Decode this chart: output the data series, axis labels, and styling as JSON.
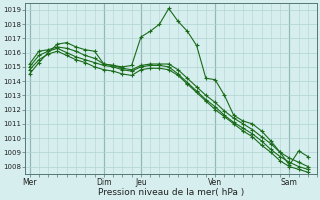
{
  "xlabel": "Pression niveau de la mer( hPa )",
  "bg_color": "#d6eeee",
  "grid_color": "#b0d4d4",
  "line_color": "#1a6b1a",
  "marker_color": "#1a6b1a",
  "ylim": [
    1007.5,
    1019.5
  ],
  "yticks": [
    1008,
    1009,
    1010,
    1011,
    1012,
    1013,
    1014,
    1015,
    1016,
    1017,
    1018,
    1019
  ],
  "day_labels": [
    "Mer",
    "Dim",
    "Jeu",
    "Ven",
    "Sam"
  ],
  "day_positions": [
    0,
    48,
    72,
    120,
    168
  ],
  "xlim": [
    -3,
    186
  ],
  "series": [
    [
      0,
      1014.5,
      6,
      1015.3,
      12,
      1016.0,
      18,
      1016.6,
      24,
      1016.7,
      30,
      1016.4,
      36,
      1016.2,
      42,
      1016.1,
      48,
      1015.2,
      54,
      1015.1,
      60,
      1015.0,
      66,
      1015.1,
      72,
      1017.1,
      78,
      1017.5,
      84,
      1018.0,
      90,
      1019.1,
      96,
      1018.2,
      102,
      1017.5,
      108,
      1016.5,
      114,
      1014.2,
      120,
      1014.1,
      126,
      1013.0,
      132,
      1011.6,
      138,
      1011.2,
      144,
      1011.0,
      150,
      1010.5,
      156,
      1009.8,
      162,
      1009.0,
      168,
      1008.1,
      174,
      1009.1,
      180,
      1008.7
    ],
    [
      0,
      1015.2,
      6,
      1016.1,
      12,
      1016.2,
      18,
      1016.4,
      24,
      1016.3,
      30,
      1016.1,
      36,
      1015.8,
      42,
      1015.6,
      48,
      1015.2,
      54,
      1015.1,
      60,
      1014.9,
      66,
      1014.8,
      72,
      1015.1,
      78,
      1015.2,
      84,
      1015.2,
      90,
      1015.2,
      96,
      1014.8,
      102,
      1014.2,
      108,
      1013.6,
      114,
      1013.0,
      120,
      1012.5,
      126,
      1011.9,
      132,
      1011.4,
      138,
      1011.0,
      144,
      1010.6,
      150,
      1010.1,
      156,
      1009.6,
      162,
      1009.0,
      168,
      1008.6,
      174,
      1008.3,
      180,
      1008.0
    ],
    [
      0,
      1015.0,
      6,
      1015.8,
      12,
      1016.1,
      18,
      1016.3,
      24,
      1016.0,
      30,
      1015.7,
      36,
      1015.5,
      42,
      1015.3,
      48,
      1015.1,
      54,
      1015.0,
      60,
      1014.8,
      66,
      1014.7,
      72,
      1015.0,
      78,
      1015.1,
      84,
      1015.1,
      90,
      1015.0,
      96,
      1014.5,
      102,
      1013.9,
      108,
      1013.3,
      114,
      1012.7,
      120,
      1012.2,
      126,
      1011.6,
      132,
      1011.1,
      138,
      1010.7,
      144,
      1010.3,
      150,
      1009.8,
      156,
      1009.2,
      162,
      1008.7,
      168,
      1008.3,
      174,
      1008.0,
      180,
      1007.8
    ],
    [
      0,
      1014.8,
      6,
      1015.5,
      12,
      1015.9,
      18,
      1016.1,
      24,
      1015.8,
      30,
      1015.5,
      36,
      1015.3,
      42,
      1015.0,
      48,
      1014.8,
      54,
      1014.7,
      60,
      1014.5,
      66,
      1014.4,
      72,
      1014.8,
      78,
      1014.9,
      84,
      1014.9,
      90,
      1014.8,
      96,
      1014.4,
      102,
      1013.8,
      108,
      1013.2,
      114,
      1012.6,
      120,
      1012.0,
      126,
      1011.5,
      132,
      1011.0,
      138,
      1010.5,
      144,
      1010.1,
      150,
      1009.5,
      156,
      1009.0,
      162,
      1008.4,
      168,
      1008.0,
      174,
      1007.8,
      180,
      1007.6
    ]
  ]
}
